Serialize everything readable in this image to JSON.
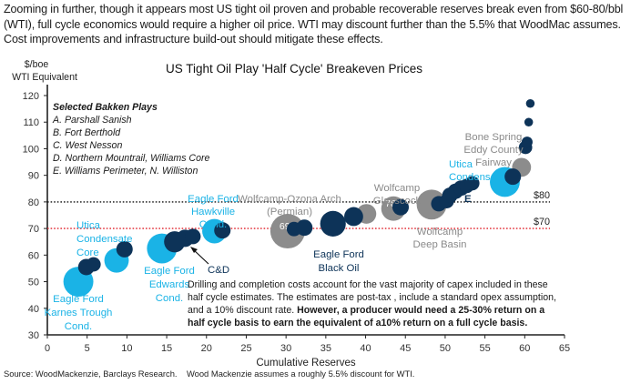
{
  "intro_text": "Zooming in further, though it appears most US tight oil proven and probable recoverable reserves break even from $60-80/bbl (WTI), full cycle economics would require a higher oil price. WTI may discount further than the 5.5% that WoodMac assumes. Cost improvements and infrastructure build-out should mitigate these effects.",
  "source_text": "Source: WoodMackenzie, Barclays Research.    Wood Mackenzie assumes a roughly 5.5% discount for WTI.",
  "colors": {
    "cyan": "#1ab3e6",
    "navy": "#0d3358",
    "grey": "#8c8c8c",
    "red_line": "#e0202a",
    "black_line": "#111111"
  },
  "chart_data": {
    "type": "scatter",
    "title": "US Tight Oil Play 'Half Cycle' Breakeven Prices",
    "ylabel_line1": "$/boe",
    "ylabel_line2": "WTI Equivalent",
    "xlabel": "Cumulative Reserves",
    "xlim": [
      0,
      65
    ],
    "ylim": [
      30,
      120
    ],
    "xticks": [
      0,
      5,
      10,
      15,
      20,
      25,
      30,
      35,
      40,
      45,
      50,
      55,
      60,
      65
    ],
    "yticks": [
      30,
      40,
      50,
      60,
      70,
      80,
      90,
      100,
      110,
      120
    ],
    "reference_lines": [
      {
        "y": 80,
        "label": "$80",
        "style": "dotted",
        "color": "black"
      },
      {
        "y": 70,
        "label": "$70",
        "style": "dotted",
        "color": "red"
      }
    ],
    "legend_title": "Selected Bakken Plays",
    "legend_items": [
      "A. Parshall Sanish",
      "B.  Fort Berthold",
      "C. West Nesson",
      "D. Northern Mountrail, Williams Core",
      "E. Williams Perimeter, N. Williston"
    ],
    "series": [
      {
        "name": "Eagle Ford / Utica (light blue)",
        "color": "cyan",
        "points": [
          {
            "x": 3.9,
            "y": 50,
            "size": 3
          },
          {
            "x": 8.7,
            "y": 58,
            "size": 2
          },
          {
            "x": 14.4,
            "y": 62.5,
            "size": 3
          },
          {
            "x": 21.0,
            "y": 69,
            "size": 2
          },
          {
            "x": 57.5,
            "y": 87.5,
            "size": 3
          }
        ]
      },
      {
        "name": "Permian (grey)",
        "color": "grey",
        "points": [
          {
            "x": 30.2,
            "y": 69,
            "size": 4,
            "label": "69"
          },
          {
            "x": 40.1,
            "y": 75.5,
            "size": 1.3
          },
          {
            "x": 43.5,
            "y": 77.5,
            "size": 2,
            "label": "78"
          },
          {
            "x": 48.3,
            "y": 79,
            "size": 3
          },
          {
            "x": 59.6,
            "y": 93,
            "size": 1.2
          }
        ]
      },
      {
        "name": "Eagle Ford Black Oil / Bakken / Other (navy)",
        "color": "navy",
        "points": [
          {
            "x": 4.9,
            "y": 55.5,
            "size": 0.9
          },
          {
            "x": 5.8,
            "y": 56.5,
            "size": 0.7
          },
          {
            "x": 9.7,
            "y": 62.2,
            "size": 0.9
          },
          {
            "x": 16.0,
            "y": 65,
            "size": 1.5
          },
          {
            "x": 17.3,
            "y": 66.3,
            "size": 1.0
          },
          {
            "x": 18.3,
            "y": 67,
            "size": 0.8
          },
          {
            "x": 22.0,
            "y": 69.3,
            "size": 0.9
          },
          {
            "x": 31.0,
            "y": 69.8,
            "size": 0.7
          },
          {
            "x": 32.3,
            "y": 70.3,
            "size": 0.9
          },
          {
            "x": 35.9,
            "y": 71.8,
            "size": 2.2
          },
          {
            "x": 38.5,
            "y": 74.5,
            "size": 1.2
          },
          {
            "x": 44.4,
            "y": 78,
            "size": 0.9
          },
          {
            "x": 49.2,
            "y": 79.3,
            "size": 0.8
          },
          {
            "x": 50.2,
            "y": 80.3,
            "size": 0.7
          },
          {
            "x": 50.6,
            "y": 82.5,
            "size": 0.8
          },
          {
            "x": 51.3,
            "y": 84,
            "size": 0.8
          },
          {
            "x": 52.0,
            "y": 85.2,
            "size": 0.8
          },
          {
            "x": 52.7,
            "y": 86,
            "size": 0.7
          },
          {
            "x": 53.4,
            "y": 87,
            "size": 0.7
          },
          {
            "x": 58.5,
            "y": 89.5,
            "size": 0.9
          },
          {
            "x": 60.1,
            "y": 100.5,
            "size": 0.6
          },
          {
            "x": 60.3,
            "y": 102.5,
            "size": 0.4
          },
          {
            "x": 60.5,
            "y": 110,
            "size": 0.25
          },
          {
            "x": 60.7,
            "y": 117,
            "size": 0.25
          }
        ]
      }
    ],
    "annotations": [
      {
        "text_lines": [
          "Eagle Ford",
          "Karnes Trough",
          "Cond."
        ],
        "color": "cyan"
      },
      {
        "text_lines": [
          "Utica",
          "Condensate",
          "Core"
        ],
        "color": "cyan"
      },
      {
        "text_lines": [
          "Eagle Ford",
          "Edwards",
          "Cond."
        ],
        "color": "cyan"
      },
      {
        "text_lines": [
          "Eagle Ford",
          "Hawkville",
          "Cond."
        ],
        "color": "cyan"
      },
      {
        "text_lines": [
          "Wolfcamp-Ozona Arch",
          "(Permian)"
        ],
        "color": "grey"
      },
      {
        "text_lines": [
          "Eagle Ford",
          "Black Oil"
        ],
        "color": "navy"
      },
      {
        "text_lines": [
          "Wolfcamp",
          "Glasscock"
        ],
        "color": "grey"
      },
      {
        "text_lines": [
          "Wolfcamp",
          "Deep Basin"
        ],
        "color": "grey"
      },
      {
        "text_lines": [
          "Utica",
          "Condensate"
        ],
        "color": "cyan"
      },
      {
        "text_lines": [
          "Bone Spring",
          "Eddy County",
          "Fairway"
        ],
        "color": "grey"
      },
      {
        "text_lines": [
          "C&D"
        ],
        "color": "navy"
      },
      {
        "text_lines": [
          "E"
        ],
        "color": "navy"
      }
    ],
    "note": {
      "lines": [
        "Drilling and completion costs account for the vast majority of capex included in  these",
        "half cycle estimates. The estimates are post-tax , include  a standard opex assumption,",
        "and a 10% discount rate."
      ],
      "bold_tail_line3": "  However, a producer  would need a 25-30% return on a",
      "bold_line4": "half cycle basis to earn the equivalent of a10% return on a full cycle basis."
    }
  }
}
